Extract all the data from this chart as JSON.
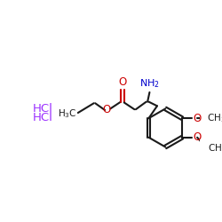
{
  "bg_color": "#ffffff",
  "bond_color": "#1a1a1a",
  "oxygen_color": "#cc0000",
  "nitrogen_color": "#0000cc",
  "hcl_color": "#9b30ff",
  "bond_lw": 1.5,
  "figsize": [
    2.5,
    2.5
  ],
  "dpi": 100,
  "xlim": [
    0,
    250
  ],
  "ylim": [
    0,
    250
  ]
}
